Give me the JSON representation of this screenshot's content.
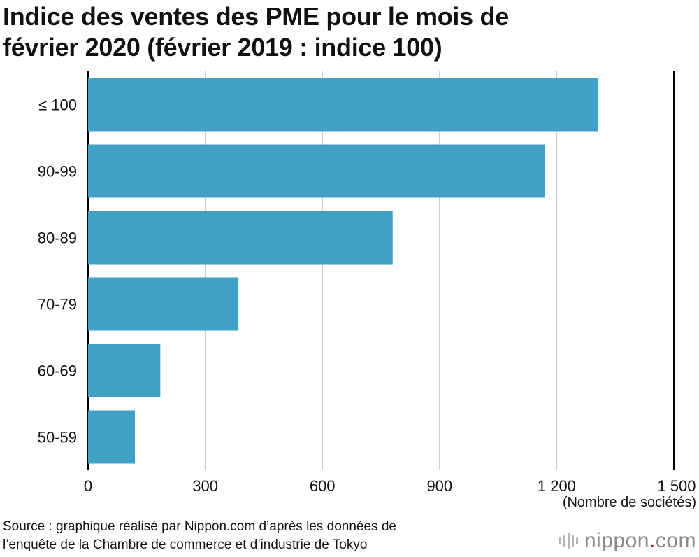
{
  "title_lines": [
    "Indice des ventes des PME pour le mois de",
    "février 2020 (février 2019 : indice 100)"
  ],
  "unit_label": "(Nombre de sociétés)",
  "source_lines": [
    "Source : graphique réalisé par Nippon.com d’après les données de",
    "l’enquête de la Chambre de commerce et d’industrie de Tokyo"
  ],
  "brand": {
    "name": "nippon",
    "dot": ".",
    "suffix": "com",
    "icon": "nippon-logo-bars-icon"
  },
  "colors": {
    "bar": "#41A1C4",
    "grid": "#cccccc",
    "axis": "#000000"
  },
  "chart_data": {
    "type": "bar",
    "orientation": "horizontal",
    "categories": [
      "≤ 100",
      "90-99",
      "80-89",
      "70-79",
      "60-69",
      "50-59"
    ],
    "values": [
      1305,
      1170,
      780,
      385,
      185,
      120
    ],
    "xlim": [
      0,
      1500
    ],
    "xticks": [
      0,
      300,
      600,
      900,
      1200,
      1500
    ],
    "xtick_labels": [
      "0",
      "300",
      "600",
      "900",
      "1 200",
      "1 500"
    ],
    "xlabel": "(Nombre de sociétés)",
    "ylabel": "",
    "grid": true
  }
}
